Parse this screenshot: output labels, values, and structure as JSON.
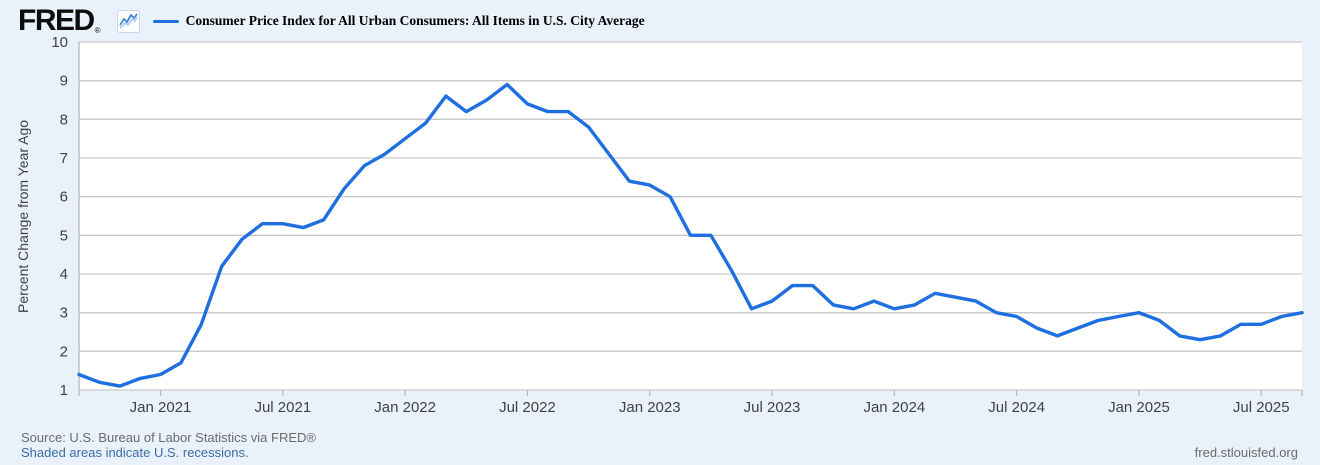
{
  "header": {
    "logo_text": "FRED",
    "logo_registered": "®",
    "series_title": "Consumer Price Index for All Urban Consumers: All Items in U.S. City Average"
  },
  "footer": {
    "source_text": "Source: U.S. Bureau of Labor Statistics via FRED®",
    "recession_note": "Shaded areas indicate U.S. recessions.",
    "site_link": "fred.stlouisfed.org"
  },
  "icons": {
    "fred_chart_icon": "mini-line-chart-icon"
  },
  "colors": {
    "line": "#1e6fe0",
    "background": "#e9f1fa",
    "plot_background": "#ffffff",
    "gridline": "#c9c9c9",
    "axis_line": "#b9b9b9",
    "axis_text": "#424242",
    "link": "#3a6ea5",
    "source_text": "#6b6b6b",
    "icon_line": "#3f87d6"
  },
  "chart_data": {
    "type": "line",
    "title": "Consumer Price Index for All Urban Consumers: All Items in U.S. City Average",
    "xlabel": "",
    "ylabel": "Percent Change from Year Ago",
    "ylim": [
      1,
      10
    ],
    "grid": "horizontal",
    "legend_position": "top-left",
    "y_ticks": [
      1,
      2,
      3,
      4,
      5,
      6,
      7,
      8,
      9,
      10
    ],
    "x_tick_labels": [
      {
        "label": "Jan 2021",
        "index": 4
      },
      {
        "label": "Jul 2021",
        "index": 10
      },
      {
        "label": "Jan 2022",
        "index": 16
      },
      {
        "label": "Jul 2022",
        "index": 22
      },
      {
        "label": "Jan 2023",
        "index": 28
      },
      {
        "label": "Jul 2023",
        "index": 34
      },
      {
        "label": "Jan 2024",
        "index": 40
      },
      {
        "label": "Jul 2024",
        "index": 46
      },
      {
        "label": "Jan 2025",
        "index": 52
      },
      {
        "label": "Jul 2025",
        "index": 58
      }
    ],
    "x": [
      "2020-09",
      "2020-10",
      "2020-11",
      "2020-12",
      "2021-01",
      "2021-02",
      "2021-03",
      "2021-04",
      "2021-05",
      "2021-06",
      "2021-07",
      "2021-08",
      "2021-09",
      "2021-10",
      "2021-11",
      "2021-12",
      "2022-01",
      "2022-02",
      "2022-03",
      "2022-04",
      "2022-05",
      "2022-06",
      "2022-07",
      "2022-08",
      "2022-09",
      "2022-10",
      "2022-11",
      "2022-12",
      "2023-01",
      "2023-02",
      "2023-03",
      "2023-04",
      "2023-05",
      "2023-06",
      "2023-07",
      "2023-08",
      "2023-09",
      "2023-10",
      "2023-11",
      "2023-12",
      "2024-01",
      "2024-02",
      "2024-03",
      "2024-04",
      "2024-05",
      "2024-06",
      "2024-07",
      "2024-08",
      "2024-09",
      "2024-10",
      "2024-11",
      "2024-12",
      "2025-01",
      "2025-02",
      "2025-03",
      "2025-04",
      "2025-05",
      "2025-06",
      "2025-07",
      "2025-08",
      "2025-09"
    ],
    "values": [
      1.4,
      1.2,
      1.1,
      1.3,
      1.4,
      1.7,
      2.7,
      4.2,
      4.9,
      5.3,
      5.3,
      5.2,
      5.4,
      6.2,
      6.8,
      7.1,
      7.5,
      7.9,
      8.6,
      8.2,
      8.5,
      8.9,
      8.4,
      8.2,
      8.2,
      7.8,
      7.1,
      6.4,
      6.3,
      6.0,
      5.0,
      5.0,
      4.1,
      3.1,
      3.3,
      3.7,
      3.7,
      3.2,
      3.1,
      3.3,
      3.1,
      3.2,
      3.5,
      3.4,
      3.3,
      3.0,
      2.9,
      2.6,
      2.4,
      2.6,
      2.8,
      2.9,
      3.0,
      2.8,
      2.4,
      2.3,
      2.4,
      2.7,
      2.7,
      2.9,
      3.0
    ]
  }
}
